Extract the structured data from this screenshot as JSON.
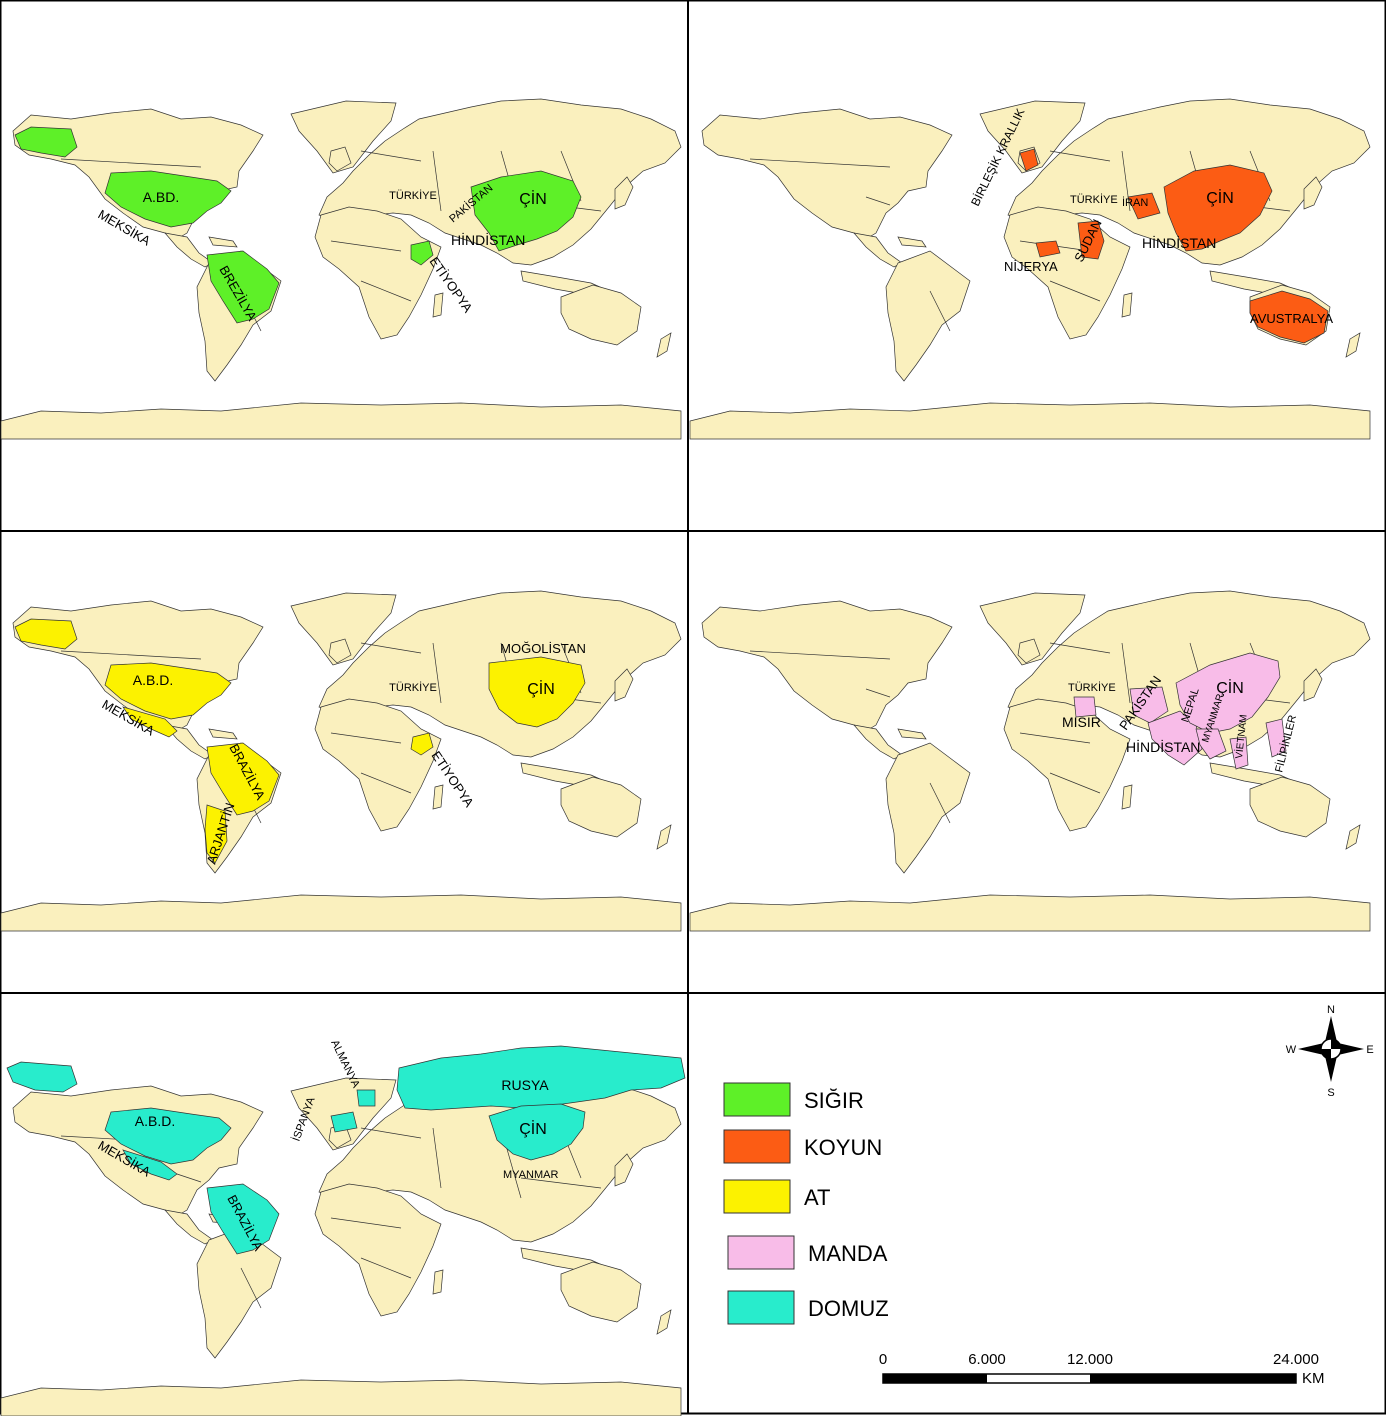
{
  "colors": {
    "ocean": "#ffffff",
    "land": "#faf0be",
    "border": "#333333",
    "sigir": "#5ef028",
    "koyun": "#fc5c14",
    "at": "#fcf200",
    "manda": "#f8bce8",
    "domuz": "#28eccc"
  },
  "maps": {
    "sigir": {
      "labels": [
        "A.BD.",
        "MEKSİKA",
        "BREZİLYA",
        "TÜRKİYE",
        "PAKİSTAN",
        "ÇİN",
        "HİNDİSTAN",
        "ETİYOPYA"
      ]
    },
    "koyun": {
      "labels": [
        "BİRLEŞİK KRALLIK",
        "TÜRKİYE",
        "İRAN",
        "ÇİN",
        "HİNDİSTAN",
        "SUDAN",
        "NİJERYA",
        "AVUSTRALYA"
      ]
    },
    "at": {
      "labels": [
        "MOĞOLİSTAN",
        "A.B.D.",
        "TÜRKİYE",
        "ÇİN",
        "MEKSİKA",
        "BRAZİLYA",
        "ETİYOPYA",
        "ARJANTİN"
      ]
    },
    "manda": {
      "labels": [
        "TÜRKİYE",
        "PAKİSTAN",
        "ÇİN",
        "MISIR",
        "HİNDİSTAN",
        "NEPAL",
        "MYANMAR",
        "VİETNAM",
        "FİLİPİNLER"
      ]
    },
    "domuz": {
      "labels": [
        "ALMANYA",
        "RUSYA",
        "A.B.D.",
        "İSPANYA",
        "ÇİN",
        "MEKSİKA",
        "MYANMAR",
        "BRAZİLYA"
      ]
    }
  },
  "legend": {
    "items": [
      {
        "label": "SIĞIR",
        "color": "#5ef028"
      },
      {
        "label": "KOYUN",
        "color": "#fc5c14"
      },
      {
        "label": "AT",
        "color": "#fcf200"
      },
      {
        "label": "MANDA",
        "color": "#f8bce8"
      },
      {
        "label": "DOMUZ",
        "color": "#28eccc"
      }
    ]
  },
  "compass": {
    "n": "N",
    "s": "S",
    "e": "E",
    "w": "W"
  },
  "scalebar": {
    "ticks": [
      "0",
      "6.000",
      "12.000",
      "24.000"
    ],
    "unit": "KM"
  }
}
